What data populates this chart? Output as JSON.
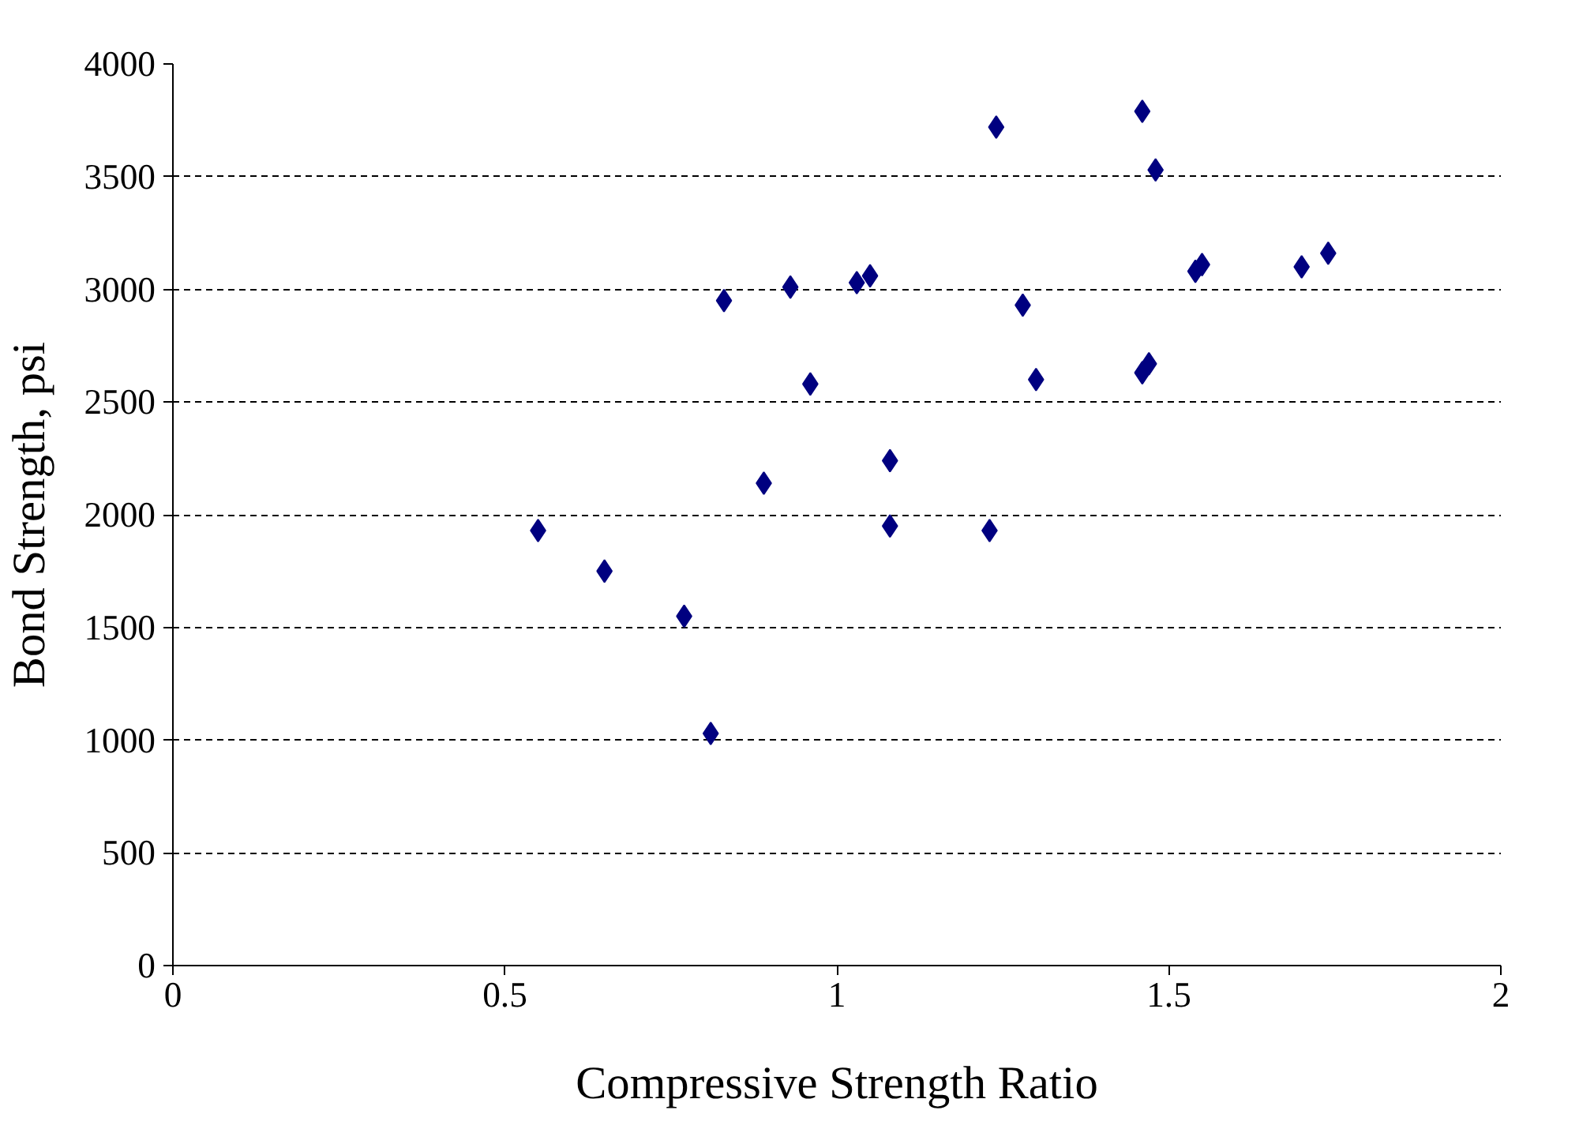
{
  "chart_data": {
    "type": "scatter",
    "xlabel": "Compressive Strength Ratio",
    "ylabel": "Bond Strength, psi",
    "x": [
      0.55,
      0.65,
      0.77,
      0.81,
      0.83,
      0.89,
      0.93,
      0.96,
      1.03,
      1.05,
      1.08,
      1.08,
      1.23,
      1.24,
      1.28,
      1.3,
      1.46,
      1.48,
      1.46,
      1.47,
      1.54,
      1.55,
      1.7,
      1.74
    ],
    "series": [
      {
        "color": "#000080",
        "values": [
          1930,
          1750,
          1550,
          1030,
          2950,
          2140,
          3010,
          2580,
          3030,
          3060,
          2240,
          1950,
          1930,
          3720,
          2930,
          2600,
          3790,
          3530,
          2630,
          2670,
          3080,
          3110,
          3100,
          3160
        ]
      }
    ],
    "xlim": [
      0,
      2
    ],
    "xticks": [
      0,
      0.5,
      1,
      1.5,
      2
    ],
    "ylim": [
      0,
      4000
    ],
    "yticks": [
      0,
      500,
      1000,
      1500,
      2000,
      2500,
      3000,
      3500,
      4000
    ],
    "grid": "y",
    "marker": "diamond"
  }
}
